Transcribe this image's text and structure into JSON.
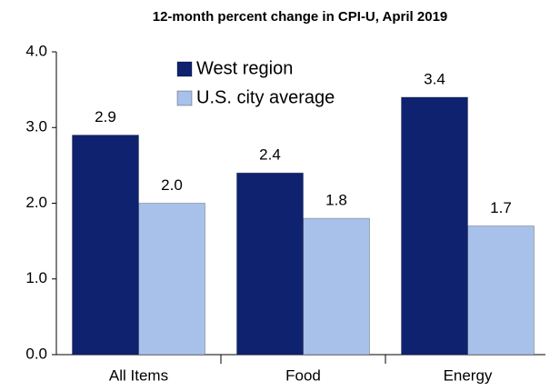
{
  "chart_data": {
    "type": "bar",
    "title": "12-month percent change in CPI-U, April 2019",
    "categories": [
      "All Items",
      "Food",
      "Energy"
    ],
    "series": [
      {
        "name": "West region",
        "color": "#0f2270",
        "values": [
          2.9,
          2.4,
          3.4
        ],
        "value_labels": [
          "2.9",
          "2.4",
          "3.4"
        ]
      },
      {
        "name": "U.S. city average",
        "color": "#a8c1ea",
        "values": [
          2.0,
          1.8,
          1.7
        ],
        "value_labels": [
          "2.0",
          "1.8",
          "1.7"
        ]
      }
    ],
    "ylim": [
      0,
      4
    ],
    "yticks": [
      {
        "value": 0,
        "label": "0.0"
      },
      {
        "value": 1,
        "label": "1.0"
      },
      {
        "value": 2,
        "label": "2.0"
      },
      {
        "value": 3,
        "label": "3.0"
      },
      {
        "value": 4,
        "label": "4.0"
      }
    ],
    "legend": "upper center"
  }
}
